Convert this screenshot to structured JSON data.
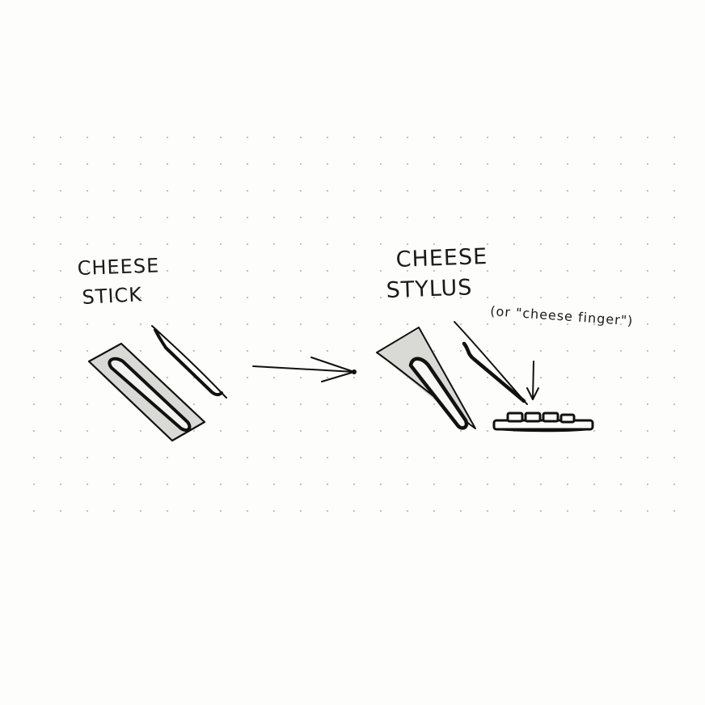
{
  "paper": {
    "background_color": "#fdfdfb",
    "dot_color": "#bdbdb8",
    "ink_color": "#111111",
    "shade_color": "#d9d9d6"
  },
  "labels": {
    "cheese_stick_line1": "CHEESE",
    "cheese_stick_line2": "STICK",
    "cheese_stylus_line1": "CHEESE",
    "cheese_stylus_line2": "STYLUS",
    "aside": "(or \"cheese finger\")"
  },
  "icons": {
    "stick": "cheese-stick-icon",
    "arrow": "transform-arrow-icon",
    "stylus": "cheese-stylus-icon",
    "keyboard": "keyboard-icon"
  }
}
